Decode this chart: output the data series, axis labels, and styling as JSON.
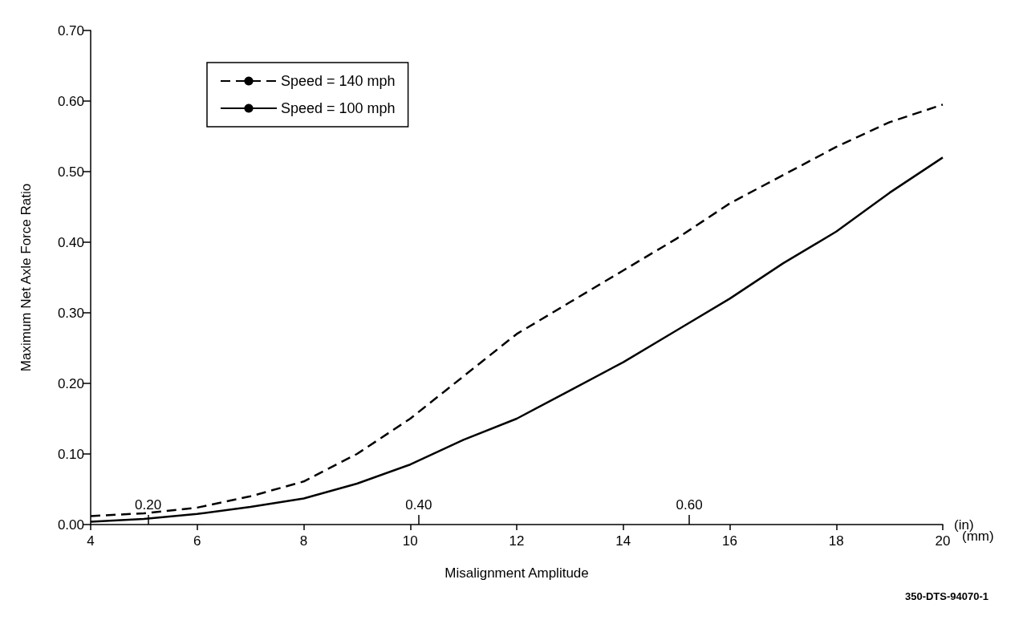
{
  "chart_data": {
    "type": "line",
    "xlabel": "Misalignment Amplitude",
    "ylabel": "Maximum Net Axle Force Ratio",
    "x2label": "(in)",
    "annotations": [
      "(mm)",
      "350-DTS-94070-1"
    ],
    "x": [
      4,
      5,
      6,
      7,
      8,
      9,
      10,
      11,
      12,
      13,
      14,
      15,
      16,
      17,
      18,
      19,
      20
    ],
    "series": [
      {
        "name": "Speed = 140 mph",
        "color": "#000000",
        "line_style": "dashed",
        "values": [
          0.012,
          0.016,
          0.024,
          0.04,
          0.061,
          0.1,
          0.15,
          0.21,
          0.27,
          0.315,
          0.36,
          0.405,
          0.455,
          0.495,
          0.535,
          0.57,
          0.595
        ]
      },
      {
        "name": "Speed = 100 mph",
        "color": "#000000",
        "line_style": "solid",
        "values": [
          0.004,
          0.008,
          0.015,
          0.025,
          0.037,
          0.058,
          0.085,
          0.12,
          0.15,
          0.19,
          0.23,
          0.275,
          0.32,
          0.37,
          0.415,
          0.47,
          0.52
        ]
      }
    ],
    "xlim": [
      4,
      20
    ],
    "xticks": [
      4,
      6,
      8,
      10,
      12,
      14,
      16,
      18,
      20
    ],
    "x2lim": [
      0.1575,
      0.7874
    ],
    "x2ticks": [
      {
        "value": 0.2,
        "label": "0.20"
      },
      {
        "value": 0.4,
        "label": "0.40"
      },
      {
        "value": 0.6,
        "label": "0.60"
      }
    ],
    "ylim": [
      0,
      0.7
    ],
    "yticks": [
      {
        "value": 0,
        "label": "0.00"
      },
      {
        "value": 0.1,
        "label": "0.10"
      },
      {
        "value": 0.2,
        "label": "0.20"
      },
      {
        "value": 0.3,
        "label": "0.30"
      },
      {
        "value": 0.4,
        "label": "0.40"
      },
      {
        "value": 0.5,
        "label": "0.50"
      },
      {
        "value": 0.6,
        "label": "0.60"
      },
      {
        "value": 0.7,
        "label": "0.70"
      }
    ],
    "grid": false,
    "legend": "top left",
    "marker": "none"
  }
}
